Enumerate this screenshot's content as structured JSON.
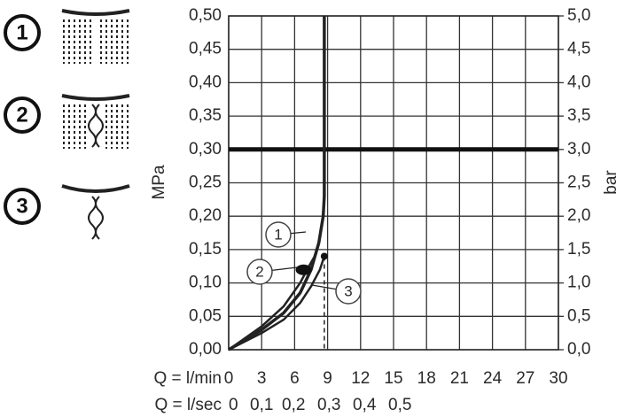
{
  "chart_data": {
    "type": "line",
    "ylabel": "MPa",
    "y2label": "bar",
    "xlabel": "Q = l/min",
    "x2label": "Q = l/sec",
    "x2_labels": [
      "0",
      "0,1",
      "0,2",
      "0,3",
      "0,4",
      "0,5"
    ],
    "xlim": [
      0,
      30
    ],
    "xticks": [
      0,
      3,
      6,
      9,
      12,
      15,
      18,
      21,
      24,
      27,
      30
    ],
    "ylim": [
      0,
      0.5
    ],
    "yticks": [
      {
        "value": 0,
        "label": "0,00"
      },
      {
        "value": 0.05,
        "label": "0,05"
      },
      {
        "value": 0.1,
        "label": "0,10"
      },
      {
        "value": 0.15,
        "label": "0,15"
      },
      {
        "value": 0.2,
        "label": "0,20"
      },
      {
        "value": 0.25,
        "label": "0,25"
      },
      {
        "value": 0.3,
        "label": "0,30"
      },
      {
        "value": 0.35,
        "label": "0,35"
      },
      {
        "value": 0.4,
        "label": "0,40"
      },
      {
        "value": 0.45,
        "label": "0,45"
      },
      {
        "value": 0.5,
        "label": "0,50"
      }
    ],
    "y2lim": [
      0,
      5
    ],
    "y2ticks": [
      {
        "value": 0,
        "label": "0,0"
      },
      {
        "value": 0.5,
        "label": "0,5"
      },
      {
        "value": 1,
        "label": "1,0"
      },
      {
        "value": 1.5,
        "label": "1,5"
      },
      {
        "value": 2,
        "label": "2,0"
      },
      {
        "value": 2.5,
        "label": "2,5"
      },
      {
        "value": 3,
        "label": "3,0"
      },
      {
        "value": 3.5,
        "label": "3,5"
      },
      {
        "value": 4,
        "label": "4,0"
      },
      {
        "value": 4.5,
        "label": "4,5"
      },
      {
        "value": 5,
        "label": "5,0"
      }
    ],
    "grid": true,
    "reference_y": 0.3,
    "series": [
      {
        "name": "1",
        "color": "#222222",
        "x": [
          0,
          3,
          5,
          6.5,
          7.5,
          8.2,
          8.6,
          8.7,
          8.7
        ],
        "values": [
          0,
          0.03,
          0.055,
          0.085,
          0.12,
          0.16,
          0.2,
          0.23,
          0.5
        ]
      },
      {
        "name": "2",
        "color": "#222222",
        "x": [
          0,
          3,
          5,
          6.5,
          7.3,
          8.0
        ],
        "values": [
          0,
          0.035,
          0.065,
          0.1,
          0.125,
          0.145
        ]
      },
      {
        "name": "3",
        "color": "#222222",
        "x": [
          0,
          3,
          5,
          6.5,
          7.5,
          8.3,
          8.7
        ],
        "values": [
          0,
          0.025,
          0.045,
          0.07,
          0.095,
          0.12,
          0.14
        ]
      }
    ]
  }
}
